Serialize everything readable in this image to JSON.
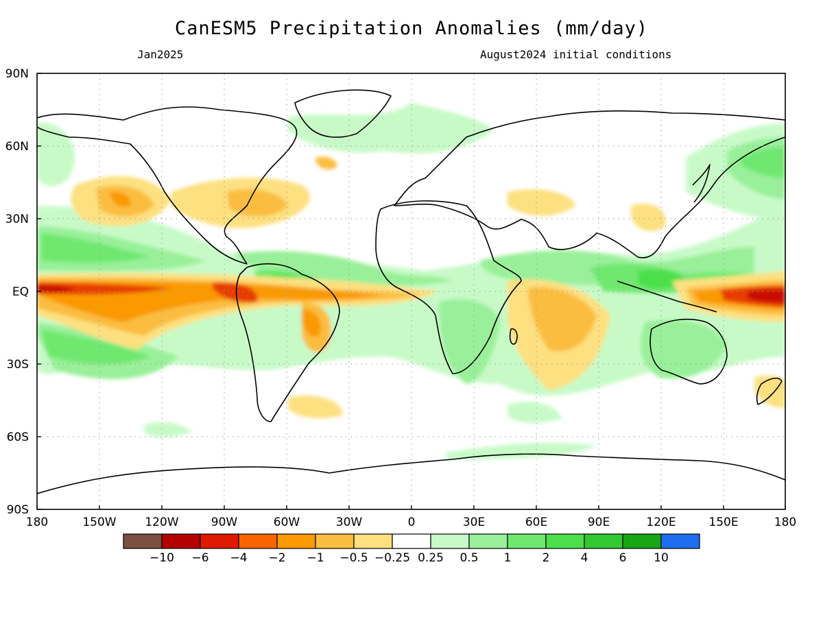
{
  "title": "CanESM5 Precipitation Anomalies (mm/day)",
  "subtitle_left": "Jan2025",
  "subtitle_right": "August2024 initial conditions",
  "axes": {
    "lon_ticks": [
      "180",
      "150W",
      "120W",
      "90W",
      "60W",
      "30W",
      "0",
      "30E",
      "60E",
      "90E",
      "120E",
      "150E",
      "180"
    ],
    "lat_ticks": [
      "90N",
      "60N",
      "30N",
      "EQ",
      "30S",
      "60S",
      "90S"
    ]
  },
  "colorbar": {
    "colors": [
      "#7a5040",
      "#b50000",
      "#e01a00",
      "#fa6400",
      "#fa9a00",
      "#fbbd40",
      "#fde080",
      "#ffffff",
      "#c8fac8",
      "#9af09a",
      "#70e870",
      "#4be04b",
      "#32c832",
      "#16a616",
      "#1e6ff0"
    ],
    "labels": [
      "−10",
      "−6",
      "−4",
      "−2",
      "−1",
      "−0.5",
      "−0.25",
      "0.25",
      "0.5",
      "1",
      "2",
      "4",
      "6",
      "10"
    ]
  },
  "palette": {
    "dry_strong": "#c80a00",
    "dry_mid": "#e83c00",
    "dry_orange": "#fa9a00",
    "dry_light": "#fbbd40",
    "dry_pale": "#fde080",
    "wet_pale": "#c8fac8",
    "wet_light": "#9af09a",
    "wet_mid": "#70e870",
    "wet_strong": "#4be04b",
    "coast": "#000000",
    "grid": "#9a9a9a"
  }
}
